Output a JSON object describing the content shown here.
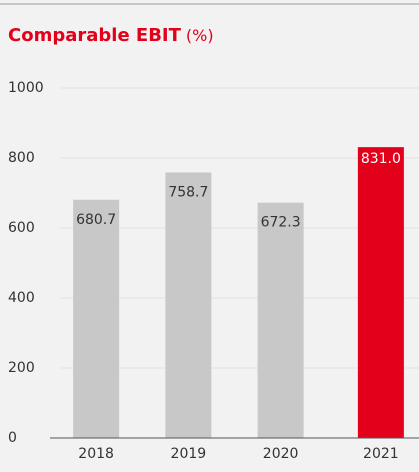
{
  "chart_data": {
    "type": "bar",
    "title": "Comparable EBIT",
    "title_unit": "(%)",
    "categories": [
      "2018",
      "2019",
      "2020",
      "2021"
    ],
    "values": [
      680.7,
      758.7,
      672.3,
      831
    ],
    "value_labels": [
      "680.7",
      "758.7",
      "672.3",
      "831.0"
    ],
    "colors": [
      "#c8c8c8",
      "#c8c8c8",
      "#c8c8c8",
      "#e2001a"
    ],
    "ylim": [
      0,
      1000
    ],
    "yticks": [
      0,
      200,
      400,
      600,
      800,
      1000
    ],
    "grid": true
  }
}
